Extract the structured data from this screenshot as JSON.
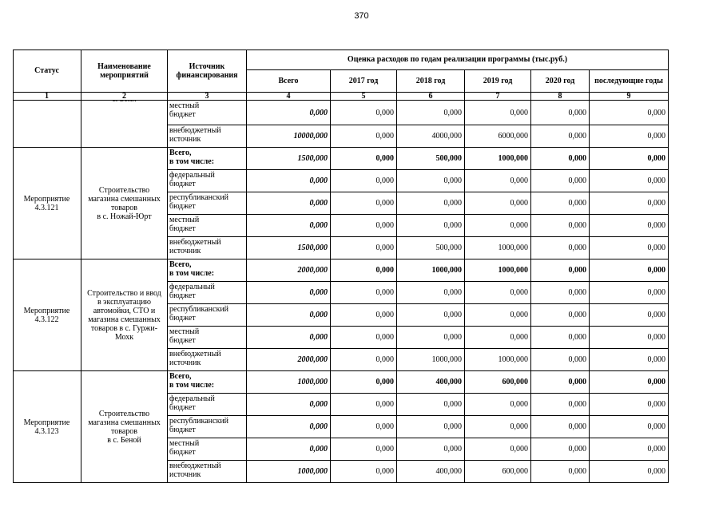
{
  "page_number": "370",
  "header": {
    "status": "Статус",
    "name": "Наименование\nмероприятий",
    "source": "Источник\nфинансирования",
    "estimate": "Оценка расходов по годам реализации  программы (тыс.руб.)",
    "years": [
      "Всего",
      "2017 год",
      "2018 год",
      "2019 год",
      "2020 год",
      "последующие годы"
    ],
    "numbers": [
      "1",
      "2",
      "3",
      "4",
      "5",
      "6",
      "7",
      "8",
      "9"
    ]
  },
  "continuation": {
    "name": "с. Бени",
    "rows": [
      {
        "source": "местный\nбюджет",
        "values": [
          "0,000",
          "0,000",
          "0,000",
          "0,000",
          "0,000",
          "0,000"
        ]
      },
      {
        "source": "внебюджетный\nисточник",
        "values": [
          "10000,000",
          "0,000",
          "4000,000",
          "6000,000",
          "0,000",
          "0,000"
        ]
      }
    ]
  },
  "groups": [
    {
      "status": "Мероприятие\n4.3.121",
      "name": "Строительство\nмагазина смешанных\nтоваров\nв с. Ножай-Юрт",
      "rows": [
        {
          "source": "Всего,\nв том числе:",
          "values": [
            "1500,000",
            "0,000",
            "500,000",
            "1000,000",
            "0,000",
            "0,000"
          ]
        },
        {
          "source": "федеральный\nбюджет",
          "values": [
            "0,000",
            "0,000",
            "0,000",
            "0,000",
            "0,000",
            "0,000"
          ]
        },
        {
          "source": "республиканский\nбюджет",
          "values": [
            "0,000",
            "0,000",
            "0,000",
            "0,000",
            "0,000",
            "0,000"
          ]
        },
        {
          "source": "местный\nбюджет",
          "values": [
            "0,000",
            "0,000",
            "0,000",
            "0,000",
            "0,000",
            "0,000"
          ]
        },
        {
          "source": "внебюджетный\nисточник",
          "values": [
            "1500,000",
            "0,000",
            "500,000",
            "1000,000",
            "0,000",
            "0,000"
          ]
        }
      ]
    },
    {
      "status": "Мероприятие\n4.3.122",
      "name": "Строительство и ввод\nв эксплуатацию\nавтомойки, СТО и\nмагазина смешанных\nтоваров в с. Гуржи-\nМохк",
      "rows": [
        {
          "source": "Всего,\nв том числе:",
          "values": [
            "2000,000",
            "0,000",
            "1000,000",
            "1000,000",
            "0,000",
            "0,000"
          ]
        },
        {
          "source": "федеральный\nбюджет",
          "values": [
            "0,000",
            "0,000",
            "0,000",
            "0,000",
            "0,000",
            "0,000"
          ]
        },
        {
          "source": "республиканский\nбюджет",
          "values": [
            "0,000",
            "0,000",
            "0,000",
            "0,000",
            "0,000",
            "0,000"
          ]
        },
        {
          "source": "местный\nбюджет",
          "values": [
            "0,000",
            "0,000",
            "0,000",
            "0,000",
            "0,000",
            "0,000"
          ]
        },
        {
          "source": "внебюджетный\nисточник",
          "values": [
            "2000,000",
            "0,000",
            "1000,000",
            "1000,000",
            "0,000",
            "0,000"
          ]
        }
      ]
    },
    {
      "status": "Мероприятие\n4.3.123",
      "name": "Строительство\nмагазина смешанных\nтоваров\nв с. Беной",
      "rows": [
        {
          "source": "Всего,\nв том числе:",
          "values": [
            "1000,000",
            "0,000",
            "400,000",
            "600,000",
            "0,000",
            "0,000"
          ]
        },
        {
          "source": "федеральный\nбюджет",
          "values": [
            "0,000",
            "0,000",
            "0,000",
            "0,000",
            "0,000",
            "0,000"
          ]
        },
        {
          "source": "республиканский\nбюджет",
          "values": [
            "0,000",
            "0,000",
            "0,000",
            "0,000",
            "0,000",
            "0,000"
          ]
        },
        {
          "source": "местный\nбюджет",
          "values": [
            "0,000",
            "0,000",
            "0,000",
            "0,000",
            "0,000",
            "0,000"
          ]
        },
        {
          "source": "внебюджетный\nисточник",
          "values": [
            "1000,000",
            "0,000",
            "400,000",
            "600,000",
            "0,000",
            "0,000"
          ]
        }
      ]
    }
  ]
}
